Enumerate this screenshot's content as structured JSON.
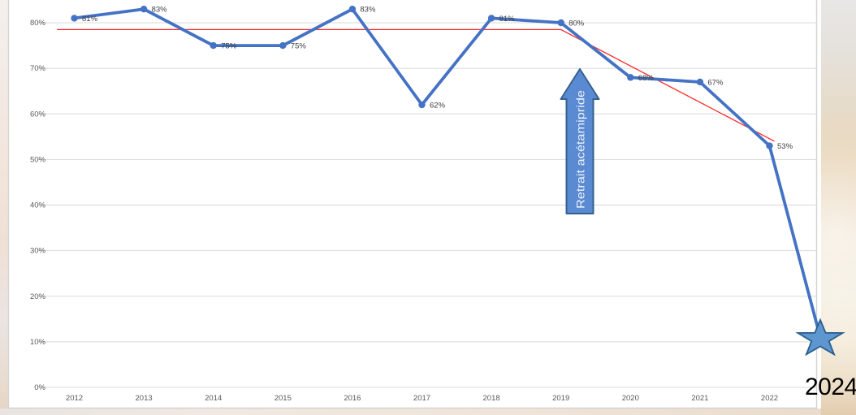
{
  "chart_data": {
    "type": "line",
    "title": "",
    "categories": [
      "2012",
      "2013",
      "2014",
      "2015",
      "2016",
      "2017",
      "2018",
      "2019",
      "2020",
      "2021",
      "2022"
    ],
    "series": [
      {
        "name": "main-percentage-series",
        "values": [
          81,
          83,
          75,
          75,
          83,
          62,
          81,
          80,
          68,
          67,
          53
        ],
        "point_labels": [
          "81%",
          "83%",
          "75%",
          "75%",
          "83%",
          "62%",
          "81%",
          "80%",
          "68%",
          "67%",
          "53%"
        ],
        "color": "#4472C4"
      }
    ],
    "final_star_point": {
      "value": 11,
      "x_year": 2022.73,
      "marker": "star"
    },
    "trend_line": {
      "color": "#FF2A2A",
      "points": [
        [
          2011.75,
          78.5
        ],
        [
          2019.0,
          78.5
        ],
        [
          2022.07,
          54
        ]
      ]
    },
    "y_ticks": [
      "0%",
      "10%",
      "20%",
      "30%",
      "40%",
      "50%",
      "60%",
      "70%",
      "80%"
    ],
    "y_tick_values": [
      0,
      10,
      20,
      30,
      40,
      50,
      60,
      70,
      80
    ],
    "ylim": [
      0,
      85.5
    ],
    "grid": "horizontal",
    "legend": "none",
    "annotation_arrow": {
      "text": "Retrait acétamipride",
      "direction": "up",
      "fill": "#5A8AD2",
      "border": "#36618F",
      "text_color": "#EDF3FB"
    },
    "star_marker": {
      "fill": "#5E97D0",
      "border": "#2A5E8C"
    },
    "year_overlay_label": "2024",
    "axis_text_color": "#595959",
    "data_label_color": "#3F3F3F",
    "gridline_color": "#D9D9D9",
    "frame_color": "#D6D3D0"
  }
}
